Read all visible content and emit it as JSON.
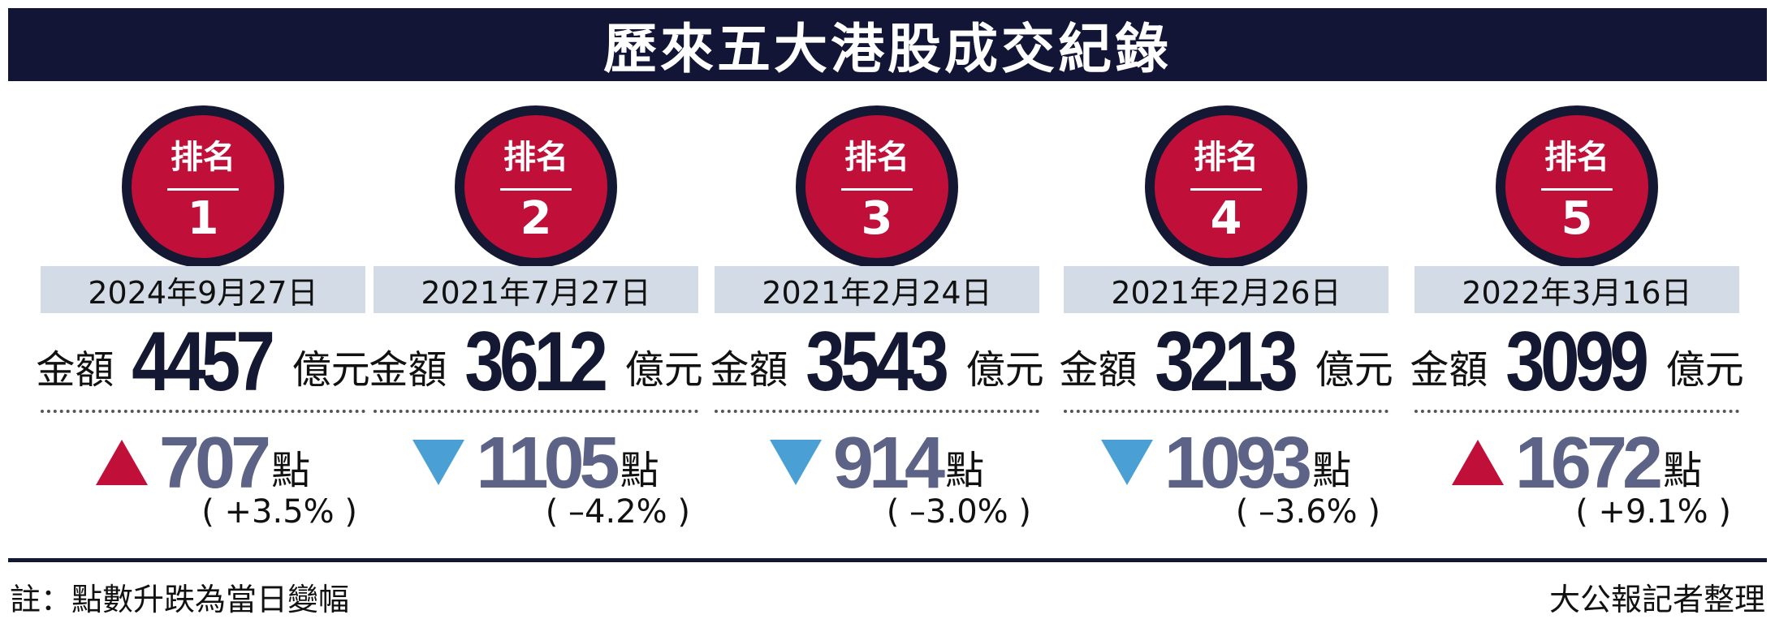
{
  "title": "歷來五大港股成交紀錄",
  "records": [
    {
      "rank_label": "排名",
      "rank": "1",
      "date": "2024年9月27日",
      "amount_label": "金額",
      "amount": "4457",
      "amount_unit": "億元",
      "direction": "up",
      "change": "707",
      "change_unit": "點",
      "change_pct": "( +3.5% )"
    },
    {
      "rank_label": "排名",
      "rank": "2",
      "date": "2021年7月27日",
      "amount_label": "金額",
      "amount": "3612",
      "amount_unit": "億元",
      "direction": "down",
      "change": "1105",
      "change_unit": "點",
      "change_pct": "( –4.2% )"
    },
    {
      "rank_label": "排名",
      "rank": "3",
      "date": "2021年2月24日",
      "amount_label": "金額",
      "amount": "3543",
      "amount_unit": "億元",
      "direction": "down",
      "change": "914",
      "change_unit": "點",
      "change_pct": "( –3.0% )"
    },
    {
      "rank_label": "排名",
      "rank": "4",
      "date": "2021年2月26日",
      "amount_label": "金額",
      "amount": "3213",
      "amount_unit": "億元",
      "direction": "down",
      "change": "1093",
      "change_unit": "點",
      "change_pct": "( –3.6% )"
    },
    {
      "rank_label": "排名",
      "rank": "5",
      "date": "2022年3月16日",
      "amount_label": "金額",
      "amount": "3099",
      "amount_unit": "億元",
      "direction": "up",
      "change": "1672",
      "change_unit": "點",
      "change_pct": "( +9.1% )"
    }
  ],
  "colors": {
    "navy": "#141833",
    "red": "#c0103a",
    "blue": "#4a9fd4",
    "date_bg": "#d2dbe6",
    "change_text": "#5d6386"
  },
  "footer": {
    "note": "註：點數升跌為當日變幅",
    "credit": "大公報記者整理"
  }
}
